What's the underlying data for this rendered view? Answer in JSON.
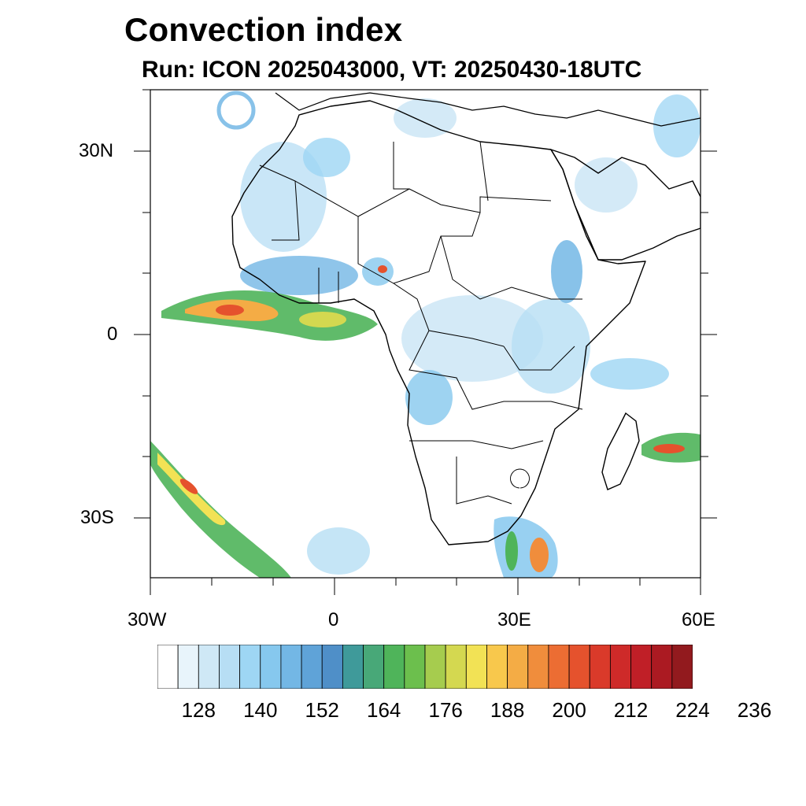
{
  "title": "Convection index",
  "subtitle": "Run: ICON 2025043000,  VT: 20250430-18UTC",
  "axes": {
    "lat_labels": [
      "30N",
      "0",
      "30S"
    ],
    "lon_labels": [
      "30W",
      "0",
      "30E",
      "60E"
    ]
  },
  "map": {
    "region": "Africa",
    "lon_range": [
      -30,
      60
    ],
    "lat_range": [
      -40,
      40
    ]
  },
  "colorbar": {
    "colors": [
      "#ffffff",
      "#e8f4fb",
      "#cfe8f6",
      "#b7def4",
      "#9ed6f4",
      "#86c8ee",
      "#73b7e5",
      "#5fa3d8",
      "#4f8fc8",
      "#3f9a9a",
      "#48a878",
      "#4fb45a",
      "#6cbf4d",
      "#a6cc4e",
      "#d4d850",
      "#f2e255",
      "#f8c84c",
      "#f4ac45",
      "#f08d3c",
      "#ec6d33",
      "#e5522d",
      "#da3a2a",
      "#ce2a29",
      "#c01f27",
      "#ab1a22",
      "#921a1e"
    ],
    "tick_labels": [
      "128",
      "140",
      "152",
      "164",
      "176",
      "188",
      "200",
      "212",
      "224",
      "236"
    ]
  }
}
